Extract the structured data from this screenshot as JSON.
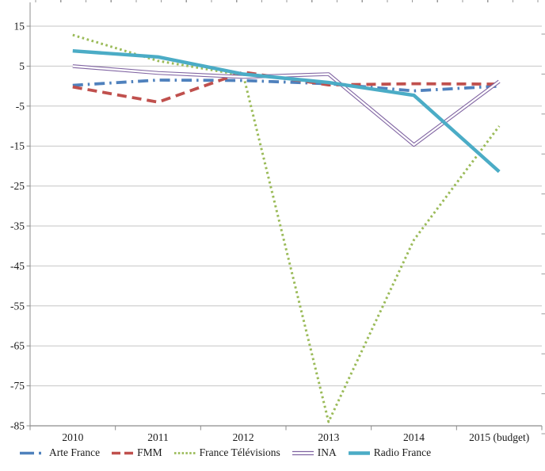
{
  "chart_data": {
    "type": "line",
    "title": "",
    "xlabel": "",
    "ylabel": "",
    "categories": [
      "2010",
      "2011",
      "2012",
      "2013",
      "2014",
      "2015 (budget)"
    ],
    "series": [
      {
        "name": "Arte France",
        "color": "#4F81BD",
        "line_style": "dash-dot",
        "values": [
          0.2,
          1.5,
          1.4,
          0.6,
          -1.2,
          0
        ]
      },
      {
        "name": "FMM",
        "color": "#C0504D",
        "line_style": "dashed",
        "values": [
          -0.2,
          -4,
          3.5,
          0.3,
          0.6,
          0.5
        ]
      },
      {
        "name": "France Télévisions",
        "color": "#9BBB59",
        "line_style": "dotted",
        "values": [
          12.8,
          6.3,
          2.7,
          -84,
          -38.5,
          -10
        ]
      },
      {
        "name": "INA",
        "color": "#8064A2",
        "line_style": "double",
        "values": [
          5,
          3.3,
          2.3,
          3,
          -14.7,
          1.2
        ]
      },
      {
        "name": "Radio France",
        "color": "#4BACC6",
        "line_style": "solid",
        "values": [
          8.8,
          7.3,
          3,
          0.9,
          -2.3,
          -21.4
        ]
      }
    ],
    "ylim": [
      -85,
      15
    ],
    "yticks": [
      15,
      5,
      -5,
      -15,
      -25,
      -35,
      -45,
      -55,
      -65,
      -75,
      -85
    ],
    "grid": true,
    "legend_position": "bottom",
    "axis_color": "#8c8c8c",
    "gridline_color": "#c6c6c6",
    "label_color": "#1a1a1a"
  }
}
